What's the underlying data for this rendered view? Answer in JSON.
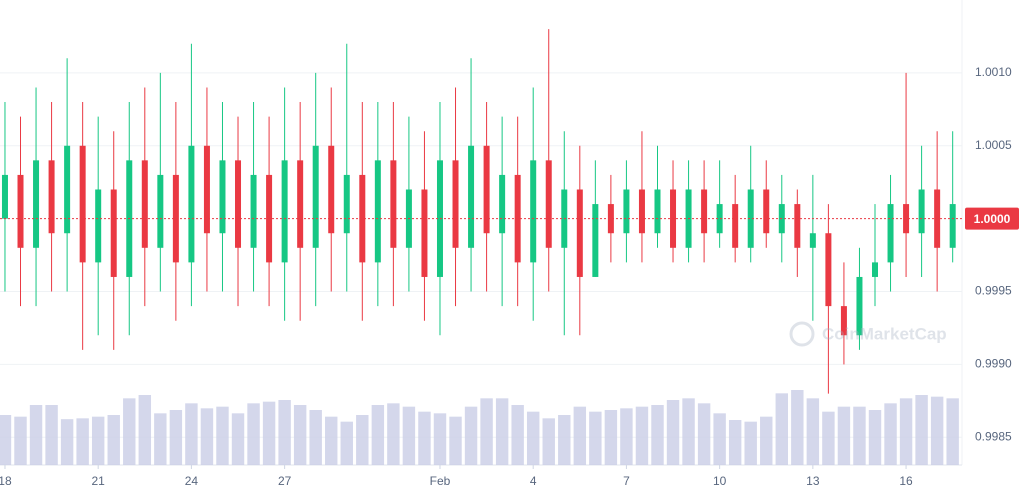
{
  "chart_data": {
    "type": "candlestick",
    "watermark": "CoinMarketCap",
    "colors": {
      "up": "#16c784",
      "down": "#ea3943",
      "volume": "#c9cde6"
    },
    "grid": true,
    "ylim": [
      0.99831,
      1.0015
    ],
    "yticks": [
      {
        "value": 1.001,
        "label": "1.0010"
      },
      {
        "value": 1.0005,
        "label": "1.0005"
      },
      {
        "value": 0.9995,
        "label": "0.9995"
      },
      {
        "value": 0.999,
        "label": "0.9990"
      },
      {
        "value": 0.9985,
        "label": "0.9985"
      }
    ],
    "last_price": {
      "value": 1.0,
      "label": "1.0000"
    },
    "xlim": [
      -0.16,
      30.8
    ],
    "xticks": [
      {
        "value": 0,
        "label": "18"
      },
      {
        "value": 3,
        "label": "21"
      },
      {
        "value": 6,
        "label": "24"
      },
      {
        "value": 9,
        "label": "27"
      },
      {
        "value": 14,
        "label": "Feb"
      },
      {
        "value": 17,
        "label": "4"
      },
      {
        "value": 20,
        "label": "7"
      },
      {
        "value": 23,
        "label": "10"
      },
      {
        "value": 26,
        "label": "13"
      },
      {
        "value": 29,
        "label": "16"
      }
    ],
    "x": [
      0,
      0.5,
      1,
      1.5,
      2,
      2.5,
      3,
      3.5,
      4,
      4.5,
      5,
      5.5,
      6,
      6.5,
      7,
      7.5,
      8,
      8.5,
      9,
      9.5,
      10,
      10.5,
      11,
      11.5,
      12,
      12.5,
      13,
      13.5,
      14,
      14.5,
      15,
      15.5,
      16,
      16.5,
      17,
      17.5,
      18,
      18.5,
      19,
      19.5,
      20,
      20.5,
      21,
      21.5,
      22,
      22.5,
      23,
      23.5,
      24,
      24.5,
      25,
      25.5,
      26,
      26.5,
      27,
      27.5,
      28,
      28.5,
      29,
      29.5,
      30,
      30.5
    ],
    "open": [
      1.0,
      1.0003,
      0.9998,
      1.0004,
      0.9999,
      1.0005,
      0.9997,
      1.0002,
      0.9996,
      1.0004,
      0.9998,
      1.0003,
      0.9997,
      1.0005,
      0.9999,
      1.0004,
      0.9998,
      1.0003,
      0.9997,
      1.0004,
      0.9998,
      1.0005,
      0.9999,
      1.0003,
      0.9997,
      1.0004,
      0.9998,
      1.0002,
      0.9996,
      1.0004,
      0.9998,
      1.0005,
      0.9999,
      1.0003,
      0.9997,
      1.0004,
      0.9998,
      1.0002,
      0.9996,
      1.0001,
      0.9999,
      1.0002,
      0.9999,
      1.0002,
      0.9998,
      1.0002,
      0.9999,
      1.0001,
      0.9998,
      1.0002,
      0.9999,
      1.0001,
      0.9998,
      0.9999,
      0.9994,
      0.9992,
      0.9996,
      0.9997,
      1.0001,
      0.9999,
      1.0002,
      0.9998
    ],
    "high": [
      1.0008,
      1.0007,
      1.0009,
      1.0008,
      1.0011,
      1.0008,
      1.0007,
      1.0006,
      1.0008,
      1.0009,
      1.001,
      1.0008,
      1.0012,
      1.0009,
      1.0008,
      1.0007,
      1.0008,
      1.0007,
      1.0009,
      1.0008,
      1.001,
      1.0009,
      1.0012,
      1.0008,
      1.0008,
      1.0008,
      1.0007,
      1.0006,
      1.0008,
      1.0009,
      1.0011,
      1.0008,
      1.0007,
      1.0007,
      1.0009,
      1.0013,
      1.0006,
      1.0005,
      1.0004,
      1.0003,
      1.0004,
      1.0006,
      1.0005,
      1.0004,
      1.0004,
      1.0004,
      1.0004,
      1.0003,
      1.0005,
      1.0004,
      1.0003,
      1.0002,
      1.0003,
      1.0001,
      0.9997,
      0.9998,
      1.0001,
      1.0003,
      1.001,
      1.0005,
      1.0006,
      1.0006
    ],
    "low": [
      0.9995,
      0.9994,
      0.9994,
      0.9995,
      0.9995,
      0.9991,
      0.9992,
      0.9991,
      0.9992,
      0.9994,
      0.9995,
      0.9993,
      0.9994,
      0.9995,
      0.9995,
      0.9994,
      0.9995,
      0.9994,
      0.9993,
      0.9993,
      0.9994,
      0.9995,
      0.9995,
      0.9993,
      0.9994,
      0.9994,
      0.9995,
      0.9993,
      0.9992,
      0.9994,
      0.9995,
      0.9995,
      0.9994,
      0.9994,
      0.9993,
      0.9995,
      0.9992,
      0.9992,
      0.9996,
      0.9997,
      0.9997,
      0.9997,
      0.9998,
      0.9997,
      0.9997,
      0.9997,
      0.9998,
      0.9997,
      0.9997,
      0.9998,
      0.9997,
      0.9996,
      0.9993,
      0.9988,
      0.999,
      0.9991,
      0.9994,
      0.9995,
      0.9996,
      0.9996,
      0.9995,
      0.9997
    ],
    "close": [
      1.0003,
      0.9998,
      1.0004,
      0.9999,
      1.0005,
      0.9997,
      1.0002,
      0.9996,
      1.0004,
      0.9998,
      1.0003,
      0.9997,
      1.0005,
      0.9999,
      1.0004,
      0.9998,
      1.0003,
      0.9997,
      1.0004,
      0.9998,
      1.0005,
      0.9999,
      1.0003,
      0.9997,
      1.0004,
      0.9998,
      1.0002,
      0.9996,
      1.0004,
      0.9998,
      1.0005,
      0.9999,
      1.0003,
      0.9997,
      1.0004,
      0.9998,
      1.0002,
      0.9996,
      1.0001,
      0.9999,
      1.0002,
      0.9999,
      1.0002,
      0.9998,
      1.0002,
      0.9999,
      1.0001,
      0.9998,
      1.0002,
      0.9999,
      1.0001,
      0.9998,
      0.9999,
      0.9994,
      0.9992,
      0.9996,
      0.9997,
      1.0001,
      0.9999,
      1.0002,
      0.9998,
      1.0001
    ],
    "volume": [
      60,
      58,
      72,
      72,
      55,
      56,
      58,
      60,
      80,
      84,
      62,
      66,
      74,
      68,
      70,
      62,
      74,
      76,
      78,
      72,
      66,
      58,
      52,
      60,
      72,
      74,
      70,
      64,
      62,
      58,
      70,
      80,
      80,
      72,
      64,
      56,
      60,
      70,
      64,
      66,
      68,
      70,
      72,
      78,
      80,
      74,
      62,
      54,
      52,
      58,
      86,
      90,
      80,
      64,
      70,
      70,
      66,
      74,
      80,
      84,
      82,
      80
    ]
  }
}
